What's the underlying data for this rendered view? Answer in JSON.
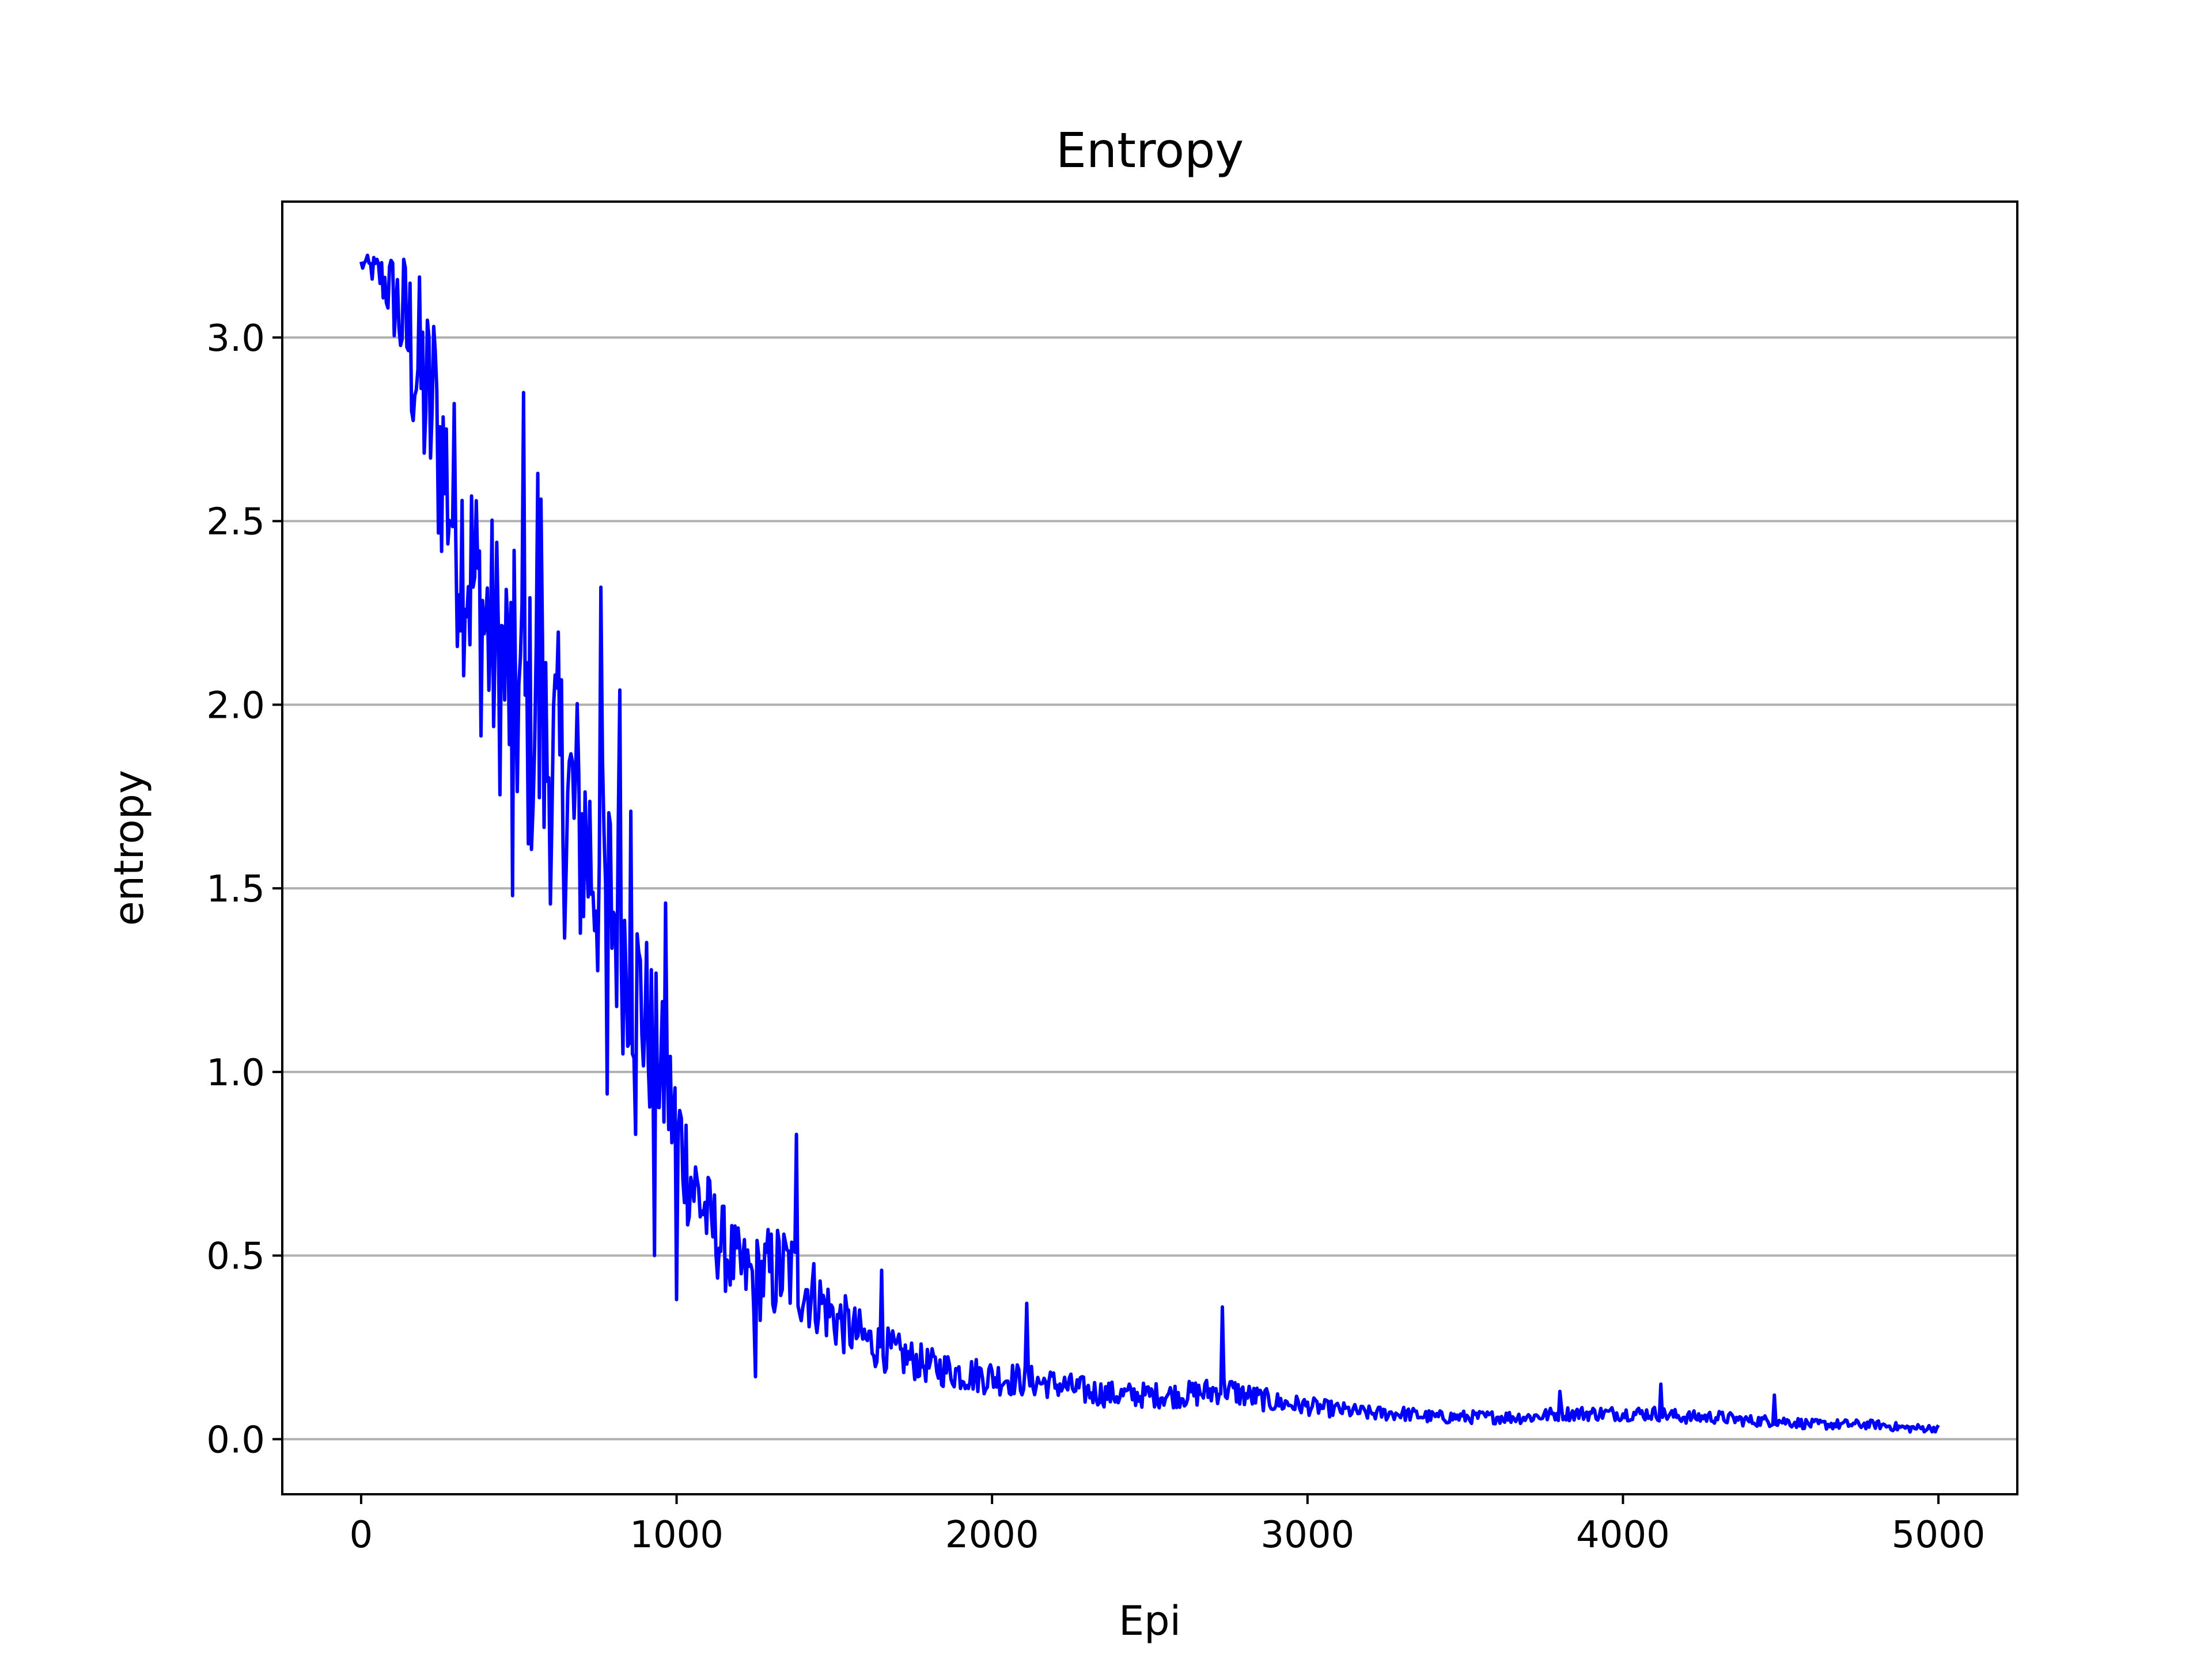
{
  "chart_data": {
    "type": "line",
    "title": "Entropy",
    "xlabel": "Epi",
    "ylabel": "entropy",
    "xlim": [
      -250,
      5250
    ],
    "ylim": [
      -0.15,
      3.37
    ],
    "xticks": [
      0,
      1000,
      2000,
      3000,
      4000,
      5000
    ],
    "xtick_labels": [
      "0",
      "1000",
      "2000",
      "3000",
      "4000",
      "5000"
    ],
    "yticks": [
      0.0,
      0.5,
      1.0,
      1.5,
      2.0,
      2.5,
      3.0
    ],
    "ytick_labels": [
      "0.0",
      "0.5",
      "1.0",
      "1.5",
      "2.0",
      "2.5",
      "3.0"
    ],
    "grid": "horizontal",
    "series": [
      {
        "color": "#0000ff",
        "note_points": "approximate trend readings (noisy series)",
        "x": [
          0,
          50,
          100,
          150,
          200,
          250,
          300,
          350,
          400,
          450,
          500,
          550,
          600,
          650,
          700,
          750,
          800,
          850,
          900,
          950,
          1000,
          1050,
          1100,
          1150,
          1200,
          1250,
          1300,
          1350,
          1400,
          1450,
          1500,
          1600,
          1700,
          1800,
          1900,
          2000,
          2100,
          2200,
          2300,
          2400,
          2500,
          2600,
          2700,
          2730,
          2800,
          2900,
          3000,
          3100,
          3200,
          3300,
          3400,
          3500,
          3600,
          3700,
          3800,
          3900,
          4000,
          4100,
          4200,
          4300,
          4400,
          4500,
          4600,
          4700,
          4800,
          4900,
          5000
        ],
        "y": [
          3.2,
          3.18,
          3.12,
          3.0,
          2.85,
          2.7,
          2.5,
          2.35,
          2.2,
          2.1,
          2.0,
          1.92,
          1.85,
          1.75,
          1.65,
          1.55,
          1.45,
          1.3,
          1.15,
          1.0,
          0.85,
          0.7,
          0.6,
          0.52,
          0.46,
          0.44,
          0.45,
          0.46,
          0.42,
          0.38,
          0.33,
          0.27,
          0.23,
          0.2,
          0.18,
          0.17,
          0.16,
          0.15,
          0.13,
          0.12,
          0.12,
          0.12,
          0.13,
          0.14,
          0.12,
          0.1,
          0.09,
          0.08,
          0.07,
          0.07,
          0.06,
          0.06,
          0.06,
          0.06,
          0.07,
          0.07,
          0.07,
          0.07,
          0.06,
          0.06,
          0.05,
          0.05,
          0.04,
          0.04,
          0.04,
          0.03,
          0.03
        ],
        "noise": [
          0.02,
          0.05,
          0.12,
          0.25,
          0.3,
          0.32,
          0.34,
          0.36,
          0.36,
          0.38,
          0.4,
          0.4,
          0.4,
          0.4,
          0.38,
          0.36,
          0.34,
          0.3,
          0.26,
          0.22,
          0.2,
          0.16,
          0.13,
          0.12,
          0.11,
          0.12,
          0.14,
          0.14,
          0.12,
          0.1,
          0.09,
          0.07,
          0.06,
          0.05,
          0.05,
          0.05,
          0.045,
          0.04,
          0.04,
          0.035,
          0.035,
          0.035,
          0.04,
          0.04,
          0.035,
          0.03,
          0.025,
          0.022,
          0.02,
          0.02,
          0.018,
          0.018,
          0.018,
          0.018,
          0.02,
          0.02,
          0.02,
          0.02,
          0.018,
          0.018,
          0.016,
          0.016,
          0.014,
          0.014,
          0.012,
          0.012,
          0.01
        ],
        "spikes": [
          {
            "x": 15,
            "y": 3.21
          },
          {
            "x": 230,
            "y": 3.03
          },
          {
            "x": 515,
            "y": 2.85
          },
          {
            "x": 560,
            "y": 2.63
          },
          {
            "x": 570,
            "y": 2.56
          },
          {
            "x": 760,
            "y": 2.32
          },
          {
            "x": 820,
            "y": 2.04
          },
          {
            "x": 855,
            "y": 1.71
          },
          {
            "x": 965,
            "y": 1.46
          },
          {
            "x": 1380,
            "y": 0.83
          },
          {
            "x": 1650,
            "y": 0.46
          },
          {
            "x": 2110,
            "y": 0.37
          },
          {
            "x": 2730,
            "y": 0.36
          },
          {
            "x": 3800,
            "y": 0.13
          },
          {
            "x": 4120,
            "y": 0.15
          },
          {
            "x": 4480,
            "y": 0.12
          }
        ],
        "dips": [
          {
            "x": 480,
            "y": 1.48
          },
          {
            "x": 780,
            "y": 0.94
          },
          {
            "x": 870,
            "y": 0.83
          },
          {
            "x": 930,
            "y": 0.5
          },
          {
            "x": 1000,
            "y": 0.38
          },
          {
            "x": 1250,
            "y": 0.17
          }
        ]
      }
    ]
  }
}
